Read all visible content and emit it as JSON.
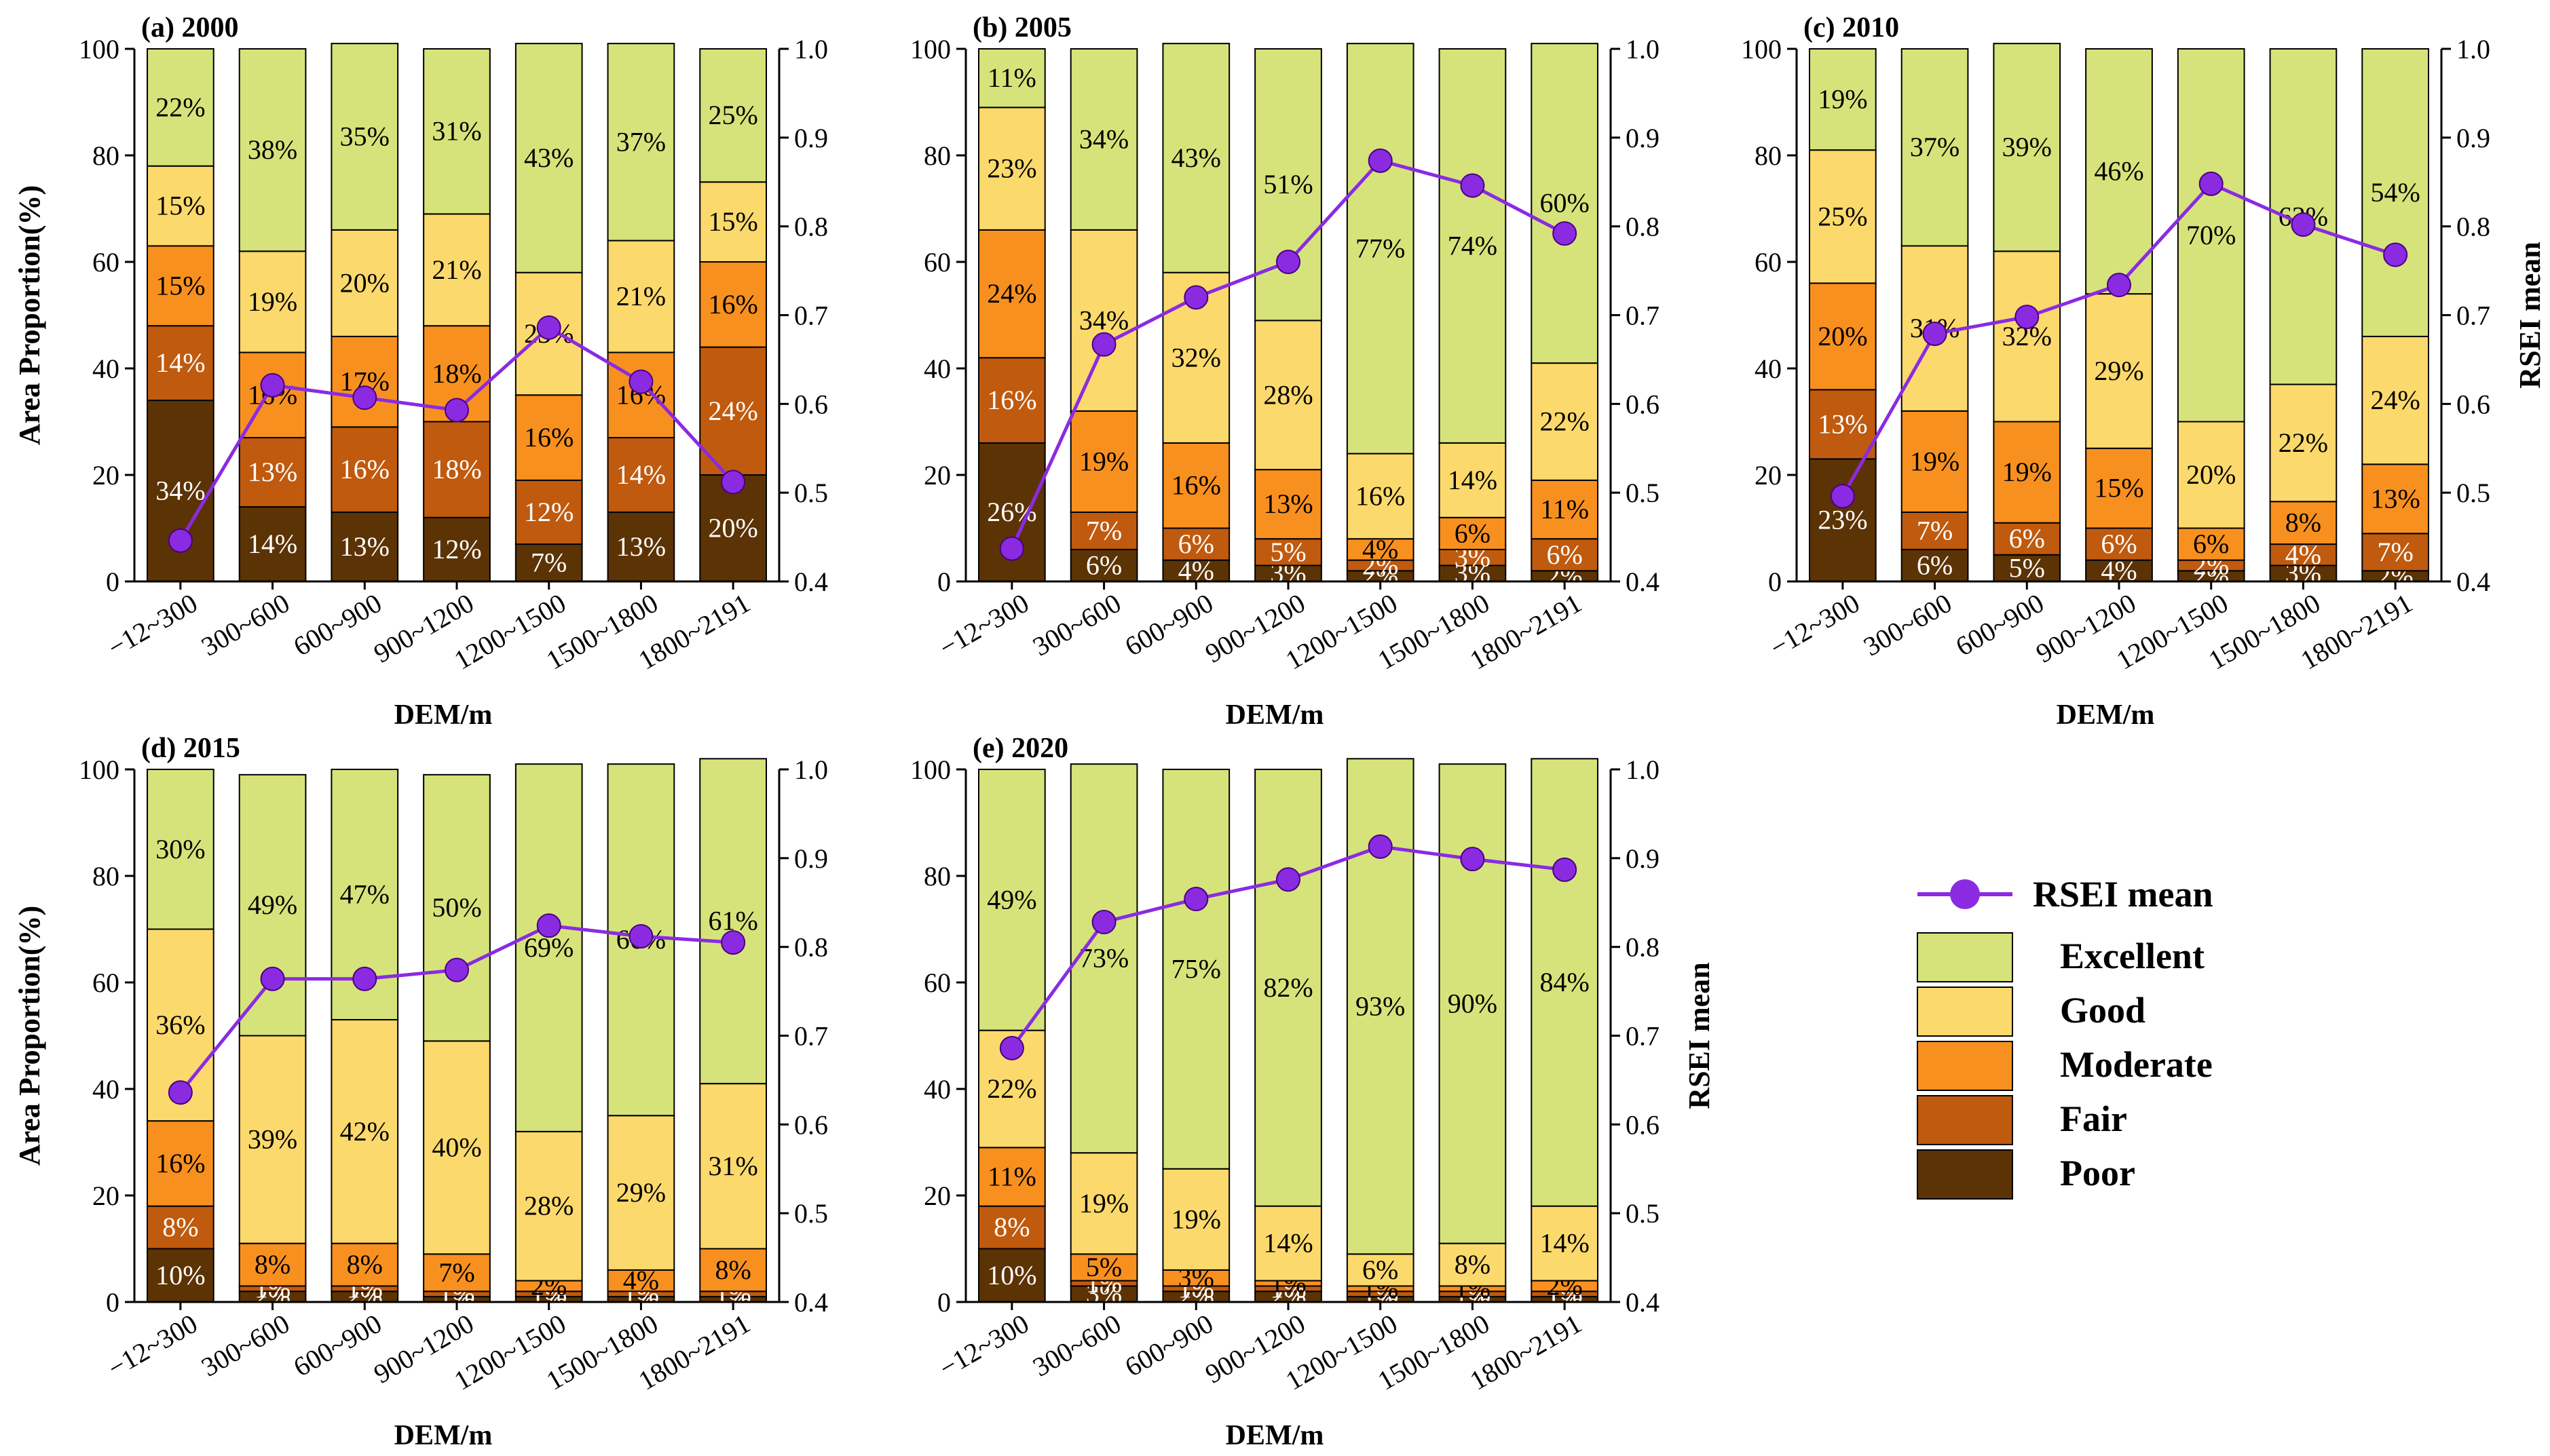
{
  "colors": {
    "Excellent": "#d6e37a",
    "Good": "#fcd96c",
    "Moderate": "#f8901f",
    "Fair": "#c05a0e",
    "Poor": "#5c3304",
    "line": "#8a2be2",
    "axis": "#000000"
  },
  "legend": {
    "rsei_label": "RSEI mean",
    "classes": [
      "Excellent",
      "Good",
      "Moderate",
      "Fair",
      "Poor"
    ]
  },
  "chart_data": [
    {
      "type": "bar",
      "title": "(a) 2000",
      "xlabel": "DEM/m",
      "ylabel": "Area Proportion(%)",
      "y2label": "",
      "ylim": [
        0,
        100
      ],
      "y2lim": [
        0.4,
        1.0
      ],
      "categories": [
        "−12~300",
        "300~600",
        "600~900",
        "900~1200",
        "1200~1500",
        "1500~1800",
        "1800~2191"
      ],
      "series": [
        {
          "name": "Poor",
          "values": [
            34,
            14,
            13,
            12,
            7,
            13,
            20
          ]
        },
        {
          "name": "Fair",
          "values": [
            14,
            13,
            16,
            18,
            12,
            14,
            24
          ]
        },
        {
          "name": "Moderate",
          "values": [
            15,
            16,
            17,
            18,
            16,
            16,
            16
          ]
        },
        {
          "name": "Good",
          "values": [
            15,
            19,
            20,
            21,
            23,
            21,
            15
          ]
        },
        {
          "name": "Excellent",
          "values": [
            22,
            38,
            35,
            31,
            43,
            37,
            25
          ]
        }
      ],
      "rsei_mean": [
        0.446,
        0.621,
        0.607,
        0.593,
        0.686,
        0.625,
        0.512
      ]
    },
    {
      "type": "bar",
      "title": "(b) 2005",
      "xlabel": "DEM/m",
      "ylabel": "",
      "y2label": "",
      "ylim": [
        0,
        100
      ],
      "y2lim": [
        0.4,
        1.0
      ],
      "categories": [
        "−12~300",
        "300~600",
        "600~900",
        "900~1200",
        "1200~1500",
        "1500~1800",
        "1800~2191"
      ],
      "series": [
        {
          "name": "Poor",
          "values": [
            26,
            6,
            4,
            3,
            2,
            3,
            2
          ]
        },
        {
          "name": "Fair",
          "values": [
            16,
            7,
            6,
            5,
            2,
            3,
            6
          ]
        },
        {
          "name": "Moderate",
          "values": [
            24,
            19,
            16,
            13,
            4,
            6,
            11
          ]
        },
        {
          "name": "Good",
          "values": [
            23,
            34,
            32,
            28,
            16,
            14,
            22
          ]
        },
        {
          "name": "Excellent",
          "values": [
            11,
            34,
            43,
            51,
            77,
            74,
            60
          ]
        }
      ],
      "rsei_mean": [
        0.437,
        0.667,
        0.72,
        0.76,
        0.874,
        0.846,
        0.792
      ]
    },
    {
      "type": "bar",
      "title": "(c) 2010",
      "xlabel": "DEM/m",
      "ylabel": "",
      "y2label": "RSEI mean",
      "ylim": [
        0,
        100
      ],
      "y2lim": [
        0.4,
        1.0
      ],
      "categories": [
        "−12~300",
        "300~600",
        "600~900",
        "900~1200",
        "1200~1500",
        "1500~1800",
        "1800~2191"
      ],
      "series": [
        {
          "name": "Poor",
          "values": [
            23,
            6,
            5,
            4,
            2,
            3,
            2
          ]
        },
        {
          "name": "Fair",
          "values": [
            13,
            7,
            6,
            6,
            2,
            4,
            7
          ]
        },
        {
          "name": "Moderate",
          "values": [
            20,
            19,
            19,
            15,
            6,
            8,
            13
          ]
        },
        {
          "name": "Good",
          "values": [
            25,
            31,
            32,
            29,
            20,
            22,
            24
          ]
        },
        {
          "name": "Excellent",
          "values": [
            19,
            37,
            39,
            46,
            70,
            63,
            54
          ]
        }
      ],
      "rsei_mean": [
        0.496,
        0.679,
        0.698,
        0.734,
        0.848,
        0.802,
        0.768
      ]
    },
    {
      "type": "bar",
      "title": "(d) 2015",
      "xlabel": "DEM/m",
      "ylabel": "Area Proportion(%)",
      "y2label": "",
      "ylim": [
        0,
        100
      ],
      "y2lim": [
        0.4,
        1.0
      ],
      "categories": [
        "−12~300",
        "300~600",
        "600~900",
        "900~1200",
        "1200~1500",
        "1500~1800",
        "1800~2191"
      ],
      "series": [
        {
          "name": "Poor",
          "values": [
            10,
            2,
            2,
            1,
            1,
            1,
            1
          ]
        },
        {
          "name": "Fair",
          "values": [
            8,
            1,
            1,
            1,
            1,
            1,
            1
          ]
        },
        {
          "name": "Moderate",
          "values": [
            16,
            8,
            8,
            7,
            2,
            4,
            8
          ]
        },
        {
          "name": "Good",
          "values": [
            36,
            39,
            42,
            40,
            28,
            29,
            31
          ]
        },
        {
          "name": "Excellent",
          "values": [
            30,
            49,
            47,
            50,
            69,
            66,
            61
          ]
        }
      ],
      "rsei_mean": [
        0.636,
        0.764,
        0.764,
        0.774,
        0.824,
        0.812,
        0.805
      ]
    },
    {
      "type": "bar",
      "title": "(e) 2020",
      "xlabel": "DEM/m",
      "ylabel": "",
      "y2label": "RSEI mean",
      "ylim": [
        0,
        100
      ],
      "y2lim": [
        0.4,
        1.0
      ],
      "categories": [
        "−12~300",
        "300~600",
        "600~900",
        "900~1200",
        "1200~1500",
        "1500~1800",
        "1800~2191"
      ],
      "series": [
        {
          "name": "Poor",
          "values": [
            10,
            3,
            2,
            2,
            1,
            1,
            1
          ]
        },
        {
          "name": "Fair",
          "values": [
            8,
            1,
            1,
            1,
            1,
            1,
            1
          ]
        },
        {
          "name": "Moderate",
          "values": [
            11,
            5,
            3,
            1,
            1,
            1,
            2
          ]
        },
        {
          "name": "Good",
          "values": [
            22,
            19,
            19,
            14,
            6,
            8,
            14
          ]
        },
        {
          "name": "Excellent",
          "values": [
            49,
            73,
            75,
            82,
            93,
            90,
            84
          ]
        }
      ],
      "rsei_mean": [
        0.686,
        0.828,
        0.854,
        0.876,
        0.913,
        0.899,
        0.887
      ]
    }
  ]
}
